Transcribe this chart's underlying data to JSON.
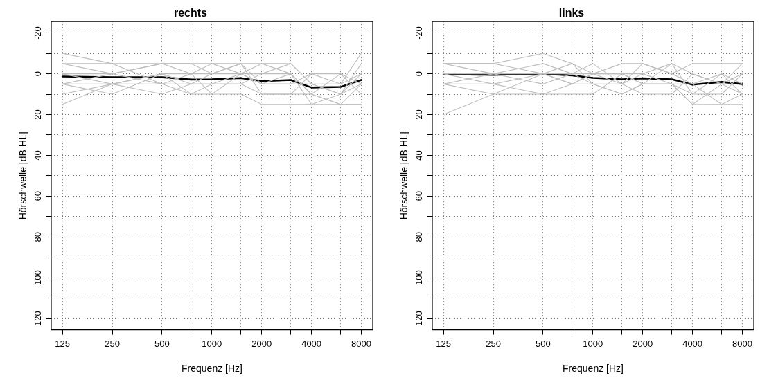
{
  "chart_data": [
    {
      "type": "line",
      "title": "rechts",
      "xlabel": "Frequenz [Hz]",
      "ylabel": "Hörschwelle [dB HL]",
      "log": "x",
      "grid": true,
      "legend": false,
      "marker": "none",
      "line_style": "solid",
      "x": [
        125,
        250,
        500,
        750,
        1000,
        1500,
        2000,
        3000,
        4000,
        6000,
        8000
      ],
      "xlim": [
        107,
        9380
      ],
      "xticks": [
        125,
        250,
        500,
        {
          "value": 750,
          "label": null
        },
        1000,
        {
          "value": 1500,
          "label": null
        },
        2000,
        {
          "value": 3000,
          "label": null
        },
        4000,
        {
          "value": 6000,
          "label": null
        },
        8000
      ],
      "ylim": [
        125.6,
        -25.6
      ],
      "yticks": [
        -20,
        {
          "value": -10,
          "label": null
        },
        0,
        {
          "value": 10,
          "label": null
        },
        20,
        {
          "value": 30,
          "label": null
        },
        40,
        {
          "value": 50,
          "label": null
        },
        60,
        {
          "value": 70,
          "label": null
        },
        80,
        {
          "value": 90,
          "label": null
        },
        100,
        {
          "value": 110,
          "label": null
        },
        120
      ],
      "series": [
        {
          "color": "#bebebe",
          "values": [
            -10,
            -5,
            -5,
            0,
            -5,
            0,
            -5,
            -5,
            5,
            5,
            -10
          ]
        },
        {
          "color": "#bebebe",
          "values": [
            15,
            5,
            0,
            5,
            5,
            0,
            0,
            0,
            15,
            15,
            15
          ]
        },
        {
          "color": "#bebebe",
          "values": [
            -5,
            0,
            -5,
            -5,
            -5,
            -5,
            5,
            5,
            0,
            0,
            10
          ]
        },
        {
          "color": "#bebebe",
          "values": [
            0,
            0,
            -5,
            -5,
            0,
            -5,
            10,
            10,
            10,
            15,
            5
          ]
        },
        {
          "color": "#bebebe",
          "values": [
            5,
            10,
            0,
            10,
            10,
            10,
            15,
            15,
            15,
            10,
            0
          ]
        },
        {
          "color": "#bebebe",
          "values": [
            5,
            5,
            10,
            5,
            5,
            5,
            0,
            -5,
            5,
            10,
            -5
          ]
        },
        {
          "color": "#bebebe",
          "values": [
            -5,
            -5,
            5,
            0,
            10,
            0,
            5,
            0,
            10,
            0,
            5
          ]
        },
        {
          "color": "#bebebe",
          "values": [
            10,
            5,
            5,
            10,
            5,
            5,
            10,
            10,
            0,
            5,
            0
          ]
        },
        {
          "color": "#bebebe",
          "values": [
            0,
            5,
            0,
            0,
            0,
            -5,
            -5,
            0,
            10,
            15,
            15
          ]
        },
        {
          "color": "#bebebe",
          "values": [
            5,
            0,
            5,
            5,
            0,
            0,
            5,
            5,
            5,
            10,
            5
          ]
        },
        {
          "color": "#000000",
          "values": [
            1.3,
            1.7,
            1.7,
            2.8,
            2.7,
            2.1,
            3.6,
            3,
            6.7,
            6.4,
            3
          ]
        }
      ]
    },
    {
      "type": "line",
      "title": "links",
      "xlabel": "Frequenz [Hz]",
      "ylabel": "Hörschwelle [dB HL]",
      "log": "x",
      "grid": true,
      "legend": false,
      "marker": "none",
      "line_style": "solid",
      "x": [
        125,
        250,
        500,
        750,
        1000,
        1500,
        2000,
        3000,
        4000,
        6000,
        8000
      ],
      "xlim": [
        107,
        9380
      ],
      "xticks": [
        125,
        250,
        500,
        {
          "value": 750,
          "label": null
        },
        1000,
        {
          "value": 1500,
          "label": null
        },
        2000,
        {
          "value": 3000,
          "label": null
        },
        4000,
        {
          "value": 6000,
          "label": null
        },
        8000
      ],
      "ylim": [
        125.6,
        -25.6
      ],
      "yticks": [
        -20,
        {
          "value": -10,
          "label": null
        },
        0,
        {
          "value": 10,
          "label": null
        },
        20,
        {
          "value": 30,
          "label": null
        },
        40,
        {
          "value": 50,
          "label": null
        },
        60,
        {
          "value": 70,
          "label": null
        },
        80,
        {
          "value": 90,
          "label": null
        },
        100,
        {
          "value": 110,
          "label": null
        },
        120
      ],
      "series": [
        {
          "color": "#bebebe",
          "values": [
            20,
            10,
            10,
            5,
            5,
            10,
            5,
            5,
            15,
            15,
            10
          ]
        },
        {
          "color": "#bebebe",
          "values": [
            -5,
            -5,
            -10,
            -5,
            0,
            -5,
            -5,
            0,
            -5,
            -5,
            -5
          ]
        },
        {
          "color": "#bebebe",
          "values": [
            5,
            0,
            0,
            -5,
            5,
            5,
            -5,
            0,
            5,
            15,
            15
          ]
        },
        {
          "color": "#bebebe",
          "values": [
            0,
            5,
            10,
            10,
            10,
            0,
            5,
            -5,
            10,
            10,
            0
          ]
        },
        {
          "color": "#bebebe",
          "values": [
            -5,
            -5,
            0,
            5,
            0,
            5,
            0,
            5,
            10,
            0,
            5
          ]
        },
        {
          "color": "#bebebe",
          "values": [
            5,
            10,
            0,
            0,
            -5,
            5,
            10,
            10,
            0,
            5,
            10
          ]
        },
        {
          "color": "#bebebe",
          "values": [
            0,
            0,
            5,
            0,
            5,
            10,
            5,
            5,
            15,
            5,
            0
          ]
        },
        {
          "color": "#bebebe",
          "values": [
            -5,
            0,
            -5,
            0,
            0,
            0,
            0,
            -5,
            0,
            5,
            -5
          ]
        },
        {
          "color": "#bebebe",
          "values": [
            5,
            5,
            0,
            5,
            0,
            0,
            5,
            5,
            5,
            0,
            10
          ]
        },
        {
          "color": "#000000",
          "values": [
            0.2,
            0.5,
            0,
            0.8,
            2,
            2.7,
            2.2,
            2.7,
            5.3,
            4,
            5
          ]
        }
      ]
    }
  ]
}
